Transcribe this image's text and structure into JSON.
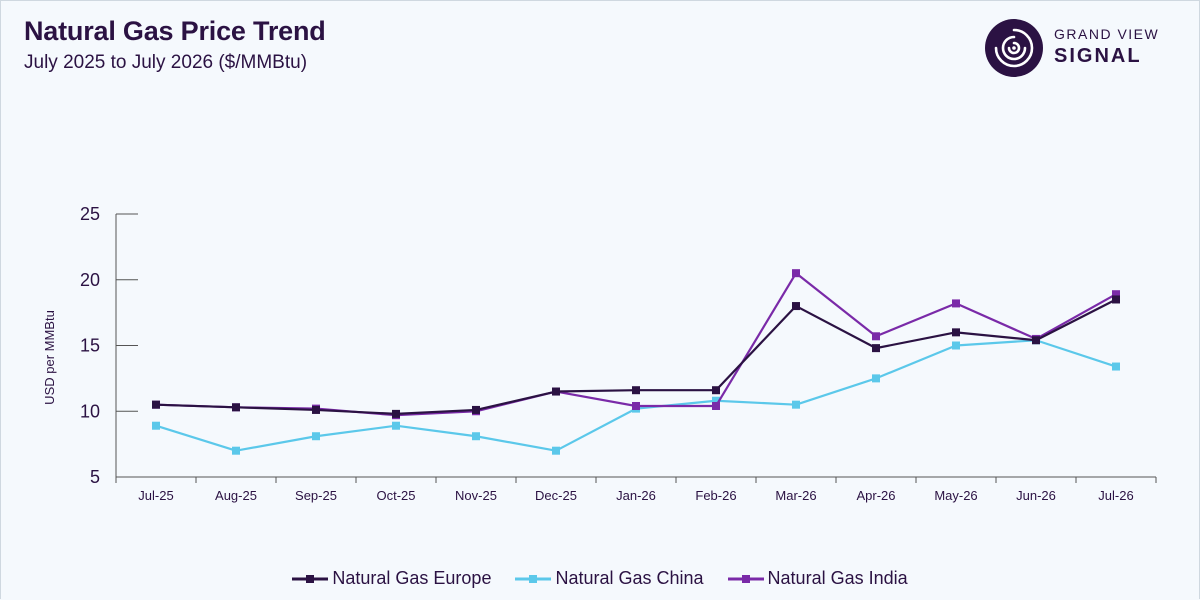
{
  "header": {
    "title": "Natural Gas Price Trend",
    "subtitle": "July 2025 to July 2026 ($/MMBtu)"
  },
  "brand": {
    "line1": "GRAND VIEW",
    "line2": "SIGNAL",
    "icon": "signal-logo-icon",
    "color": "#2b1243"
  },
  "chart_data": {
    "type": "line",
    "title": "Natural Gas Price Trend",
    "subtitle": "July 2025 to July 2026 ($/MMBtu)",
    "xlabel": "",
    "ylabel": "USD per MMBtu",
    "ylim": [
      5,
      25
    ],
    "yticks": [
      5,
      10,
      15,
      20,
      25
    ],
    "grid": false,
    "legend_position": "bottom",
    "categories": [
      "Jul-25",
      "Aug-25",
      "Sep-25",
      "Oct-25",
      "Nov-25",
      "Dec-25",
      "Jan-26",
      "Feb-26",
      "Mar-26",
      "Apr-26",
      "May-26",
      "Jun-26",
      "Jul-26"
    ],
    "series": [
      {
        "name": "Natural Gas Europe",
        "color": "#2b1243",
        "values": [
          10.5,
          10.3,
          10.1,
          9.8,
          10.1,
          11.5,
          11.6,
          11.6,
          18.0,
          14.8,
          16.0,
          15.4,
          18.5
        ]
      },
      {
        "name": "Natural Gas China",
        "color": "#5bc8ea",
        "values": [
          8.9,
          7.0,
          8.1,
          8.9,
          8.1,
          7.0,
          10.2,
          10.8,
          10.5,
          12.5,
          15.0,
          15.4,
          13.4
        ]
      },
      {
        "name": "Natural Gas India",
        "color": "#7a2aa8",
        "values": [
          10.5,
          10.3,
          10.2,
          9.7,
          10.0,
          11.5,
          10.4,
          10.4,
          20.5,
          15.7,
          18.2,
          15.5,
          18.9
        ]
      }
    ]
  }
}
